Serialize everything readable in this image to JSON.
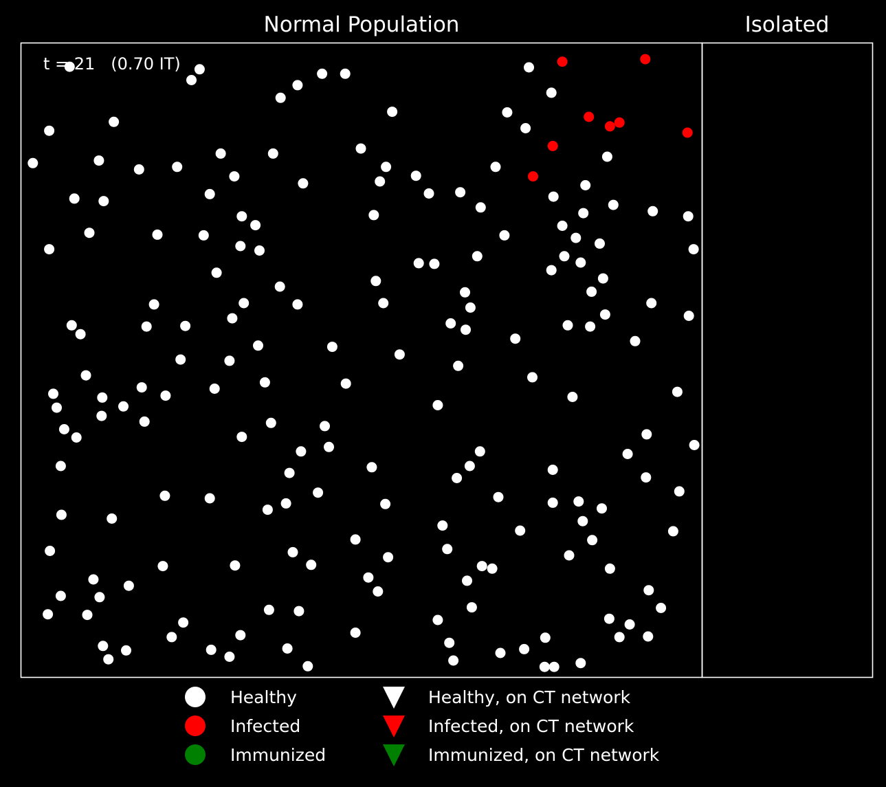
{
  "chart_data": {
    "type": "scatter",
    "background": "#000000",
    "panels": {
      "main": {
        "title": "Normal Population",
        "xlim": [
          0,
          1
        ],
        "ylim": [
          0,
          1
        ]
      },
      "isolated": {
        "title": "Isolated"
      }
    },
    "annotation": "t = 21   (0.70 IT)",
    "legend": {
      "placement": "bottom",
      "entries": [
        {
          "label": "Healthy",
          "marker": "circle",
          "color": "#ffffff"
        },
        {
          "label": "Infected",
          "marker": "circle",
          "color": "#ff0000"
        },
        {
          "label": "Immunized",
          "marker": "circle",
          "color": "#008000"
        },
        {
          "label": "Healthy, on CT network",
          "marker": "triangle-down",
          "color": "#ffffff"
        },
        {
          "label": "Infected, on CT network",
          "marker": "triangle-down",
          "color": "#ff0000"
        },
        {
          "label": "Immunized, on CT network",
          "marker": "triangle-down",
          "color": "#008000"
        }
      ]
    },
    "series": [
      {
        "name": "Healthy",
        "color": "#ffffff",
        "marker": "circle",
        "points": [
          [
            0.071,
            0.963
          ],
          [
            0.262,
            0.959
          ],
          [
            0.25,
            0.942
          ],
          [
            0.442,
            0.952
          ],
          [
            0.476,
            0.952
          ],
          [
            0.406,
            0.934
          ],
          [
            0.381,
            0.914
          ],
          [
            0.746,
            0.962
          ],
          [
            0.779,
            0.922
          ],
          [
            0.545,
            0.892
          ],
          [
            0.714,
            0.891
          ],
          [
            0.741,
            0.866
          ],
          [
            0.041,
            0.862
          ],
          [
            0.136,
            0.876
          ],
          [
            0.017,
            0.811
          ],
          [
            0.114,
            0.815
          ],
          [
            0.173,
            0.801
          ],
          [
            0.229,
            0.805
          ],
          [
            0.293,
            0.826
          ],
          [
            0.37,
            0.826
          ],
          [
            0.499,
            0.834
          ],
          [
            0.861,
            0.821
          ],
          [
            0.536,
            0.805
          ],
          [
            0.527,
            0.782
          ],
          [
            0.58,
            0.791
          ],
          [
            0.697,
            0.805
          ],
          [
            0.313,
            0.79
          ],
          [
            0.414,
            0.779
          ],
          [
            0.277,
            0.762
          ],
          [
            0.599,
            0.763
          ],
          [
            0.645,
            0.765
          ],
          [
            0.675,
            0.741
          ],
          [
            0.829,
            0.776
          ],
          [
            0.782,
            0.758
          ],
          [
            0.87,
            0.745
          ],
          [
            0.078,
            0.755
          ],
          [
            0.121,
            0.751
          ],
          [
            0.826,
            0.732
          ],
          [
            0.928,
            0.735
          ],
          [
            0.98,
            0.727
          ],
          [
            0.518,
            0.729
          ],
          [
            0.324,
            0.727
          ],
          [
            0.344,
            0.713
          ],
          [
            0.795,
            0.712
          ],
          [
            0.1,
            0.701
          ],
          [
            0.2,
            0.698
          ],
          [
            0.268,
            0.697
          ],
          [
            0.71,
            0.697
          ],
          [
            0.815,
            0.693
          ],
          [
            0.85,
            0.684
          ],
          [
            0.322,
            0.68
          ],
          [
            0.35,
            0.673
          ],
          [
            0.041,
            0.675
          ],
          [
            0.988,
            0.675
          ],
          [
            0.584,
            0.653
          ],
          [
            0.607,
            0.652
          ],
          [
            0.67,
            0.664
          ],
          [
            0.798,
            0.664
          ],
          [
            0.822,
            0.654
          ],
          [
            0.779,
            0.642
          ],
          [
            0.287,
            0.638
          ],
          [
            0.855,
            0.629
          ],
          [
            0.521,
            0.625
          ],
          [
            0.38,
            0.616
          ],
          [
            0.652,
            0.607
          ],
          [
            0.838,
            0.608
          ],
          [
            0.195,
            0.588
          ],
          [
            0.327,
            0.59
          ],
          [
            0.406,
            0.588
          ],
          [
            0.532,
            0.59
          ],
          [
            0.66,
            0.583
          ],
          [
            0.926,
            0.59
          ],
          [
            0.31,
            0.566
          ],
          [
            0.858,
            0.572
          ],
          [
            0.074,
            0.555
          ],
          [
            0.087,
            0.541
          ],
          [
            0.184,
            0.553
          ],
          [
            0.241,
            0.554
          ],
          [
            0.631,
            0.558
          ],
          [
            0.653,
            0.548
          ],
          [
            0.803,
            0.555
          ],
          [
            0.836,
            0.553
          ],
          [
            0.981,
            0.57
          ],
          [
            0.726,
            0.534
          ],
          [
            0.348,
            0.523
          ],
          [
            0.457,
            0.521
          ],
          [
            0.902,
            0.53
          ],
          [
            0.556,
            0.509
          ],
          [
            0.234,
            0.501
          ],
          [
            0.306,
            0.499
          ],
          [
            0.642,
            0.491
          ],
          [
            0.095,
            0.476
          ],
          [
            0.751,
            0.473
          ],
          [
            0.358,
            0.465
          ],
          [
            0.477,
            0.463
          ],
          [
            0.177,
            0.457
          ],
          [
            0.284,
            0.455
          ],
          [
            0.047,
            0.447
          ],
          [
            0.212,
            0.444
          ],
          [
            0.81,
            0.442
          ],
          [
            0.964,
            0.45
          ],
          [
            0.052,
            0.425
          ],
          [
            0.15,
            0.427
          ],
          [
            0.119,
            0.441
          ],
          [
            0.612,
            0.429
          ],
          [
            0.063,
            0.391
          ],
          [
            0.081,
            0.378
          ],
          [
            0.118,
            0.412
          ],
          [
            0.181,
            0.403
          ],
          [
            0.367,
            0.401
          ],
          [
            0.446,
            0.396
          ],
          [
            0.324,
            0.379
          ],
          [
            0.452,
            0.363
          ],
          [
            0.919,
            0.383
          ],
          [
            0.989,
            0.366
          ],
          [
            0.411,
            0.356
          ],
          [
            0.674,
            0.356
          ],
          [
            0.058,
            0.333
          ],
          [
            0.891,
            0.352
          ],
          [
            0.515,
            0.331
          ],
          [
            0.659,
            0.333
          ],
          [
            0.394,
            0.322
          ],
          [
            0.64,
            0.314
          ],
          [
            0.781,
            0.327
          ],
          [
            0.918,
            0.315
          ],
          [
            0.211,
            0.286
          ],
          [
            0.277,
            0.282
          ],
          [
            0.436,
            0.291
          ],
          [
            0.701,
            0.284
          ],
          [
            0.967,
            0.293
          ],
          [
            0.059,
            0.256
          ],
          [
            0.133,
            0.25
          ],
          [
            0.362,
            0.264
          ],
          [
            0.389,
            0.274
          ],
          [
            0.535,
            0.273
          ],
          [
            0.781,
            0.275
          ],
          [
            0.819,
            0.277
          ],
          [
            0.853,
            0.266
          ],
          [
            0.619,
            0.239
          ],
          [
            0.825,
            0.246
          ],
          [
            0.733,
            0.231
          ],
          [
            0.958,
            0.23
          ],
          [
            0.839,
            0.216
          ],
          [
            0.042,
            0.199
          ],
          [
            0.491,
            0.217
          ],
          [
            0.626,
            0.202
          ],
          [
            0.208,
            0.175
          ],
          [
            0.314,
            0.176
          ],
          [
            0.399,
            0.197
          ],
          [
            0.426,
            0.177
          ],
          [
            0.539,
            0.189
          ],
          [
            0.677,
            0.175
          ],
          [
            0.692,
            0.171
          ],
          [
            0.805,
            0.192
          ],
          [
            0.865,
            0.171
          ],
          [
            0.106,
            0.154
          ],
          [
            0.158,
            0.144
          ],
          [
            0.51,
            0.157
          ],
          [
            0.655,
            0.152
          ],
          [
            0.524,
            0.135
          ],
          [
            0.058,
            0.128
          ],
          [
            0.115,
            0.126
          ],
          [
            0.922,
            0.137
          ],
          [
            0.364,
            0.106
          ],
          [
            0.408,
            0.104
          ],
          [
            0.662,
            0.11
          ],
          [
            0.94,
            0.109
          ],
          [
            0.039,
            0.099
          ],
          [
            0.097,
            0.098
          ],
          [
            0.238,
            0.086
          ],
          [
            0.612,
            0.09
          ],
          [
            0.864,
            0.092
          ],
          [
            0.894,
            0.083
          ],
          [
            0.221,
            0.063
          ],
          [
            0.322,
            0.066
          ],
          [
            0.491,
            0.07
          ],
          [
            0.879,
            0.063
          ],
          [
            0.921,
            0.064
          ],
          [
            0.629,
            0.054
          ],
          [
            0.77,
            0.062
          ],
          [
            0.12,
            0.049
          ],
          [
            0.154,
            0.042
          ],
          [
            0.279,
            0.043
          ],
          [
            0.391,
            0.045
          ],
          [
            0.704,
            0.038
          ],
          [
            0.739,
            0.044
          ],
          [
            0.128,
            0.028
          ],
          [
            0.306,
            0.032
          ],
          [
            0.635,
            0.026
          ],
          [
            0.421,
            0.017
          ],
          [
            0.783,
            0.016
          ],
          [
            0.822,
            0.022
          ],
          [
            0.769,
            0.016
          ]
        ]
      },
      {
        "name": "Infected",
        "color": "#ff0000",
        "marker": "circle",
        "points": [
          [
            0.795,
            0.971
          ],
          [
            0.917,
            0.975
          ],
          [
            0.834,
            0.884
          ],
          [
            0.865,
            0.869
          ],
          [
            0.879,
            0.875
          ],
          [
            0.979,
            0.859
          ],
          [
            0.781,
            0.838
          ],
          [
            0.752,
            0.79
          ]
        ]
      },
      {
        "name": "Immunized",
        "color": "#008000",
        "marker": "circle",
        "points": []
      }
    ]
  }
}
